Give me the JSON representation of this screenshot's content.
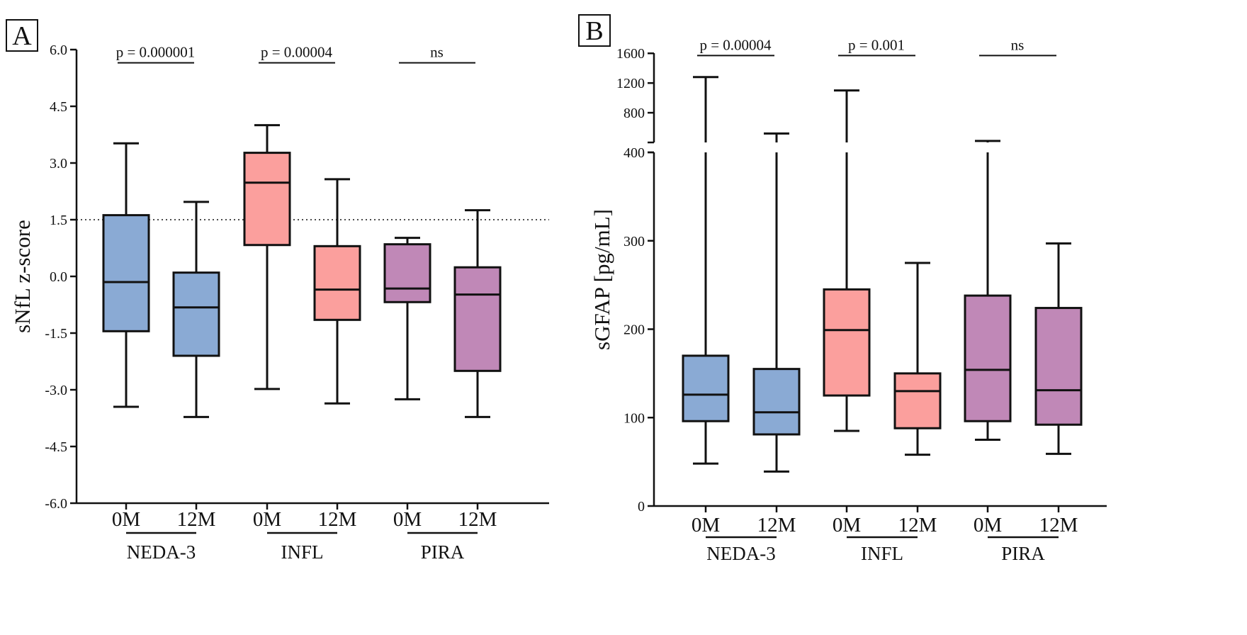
{
  "figure": {
    "panels_desc": "Two box-plot panels"
  },
  "colors": {
    "neda3": "#8aaad4",
    "infl": "#fb9f9d",
    "pira": "#c088b7",
    "stroke": "#111111"
  },
  "chart_data": [
    {
      "type": "box",
      "panel_label": "A",
      "ylabel": "sNfL z-score",
      "ylim": [
        -6.0,
        6.0
      ],
      "yticks": [
        6.0,
        4.5,
        3.0,
        1.5,
        0.0,
        -1.5,
        -3.0,
        -4.5,
        -6.0
      ],
      "ytick_labels": [
        "6.0",
        "4.5",
        "3.0",
        "1.5",
        "0.0",
        "-1.5",
        "-3.0",
        "-4.5",
        "-6.0"
      ],
      "reference_line": 1.5,
      "categories": [
        "0M",
        "12M",
        "0M",
        "12M",
        "0M",
        "12M"
      ],
      "groups": [
        {
          "name": "NEDA-3",
          "color_key": "neda3"
        },
        {
          "name": "INFL",
          "color_key": "infl"
        },
        {
          "name": "PIRA",
          "color_key": "pira"
        }
      ],
      "boxes": [
        {
          "group": 0,
          "timepoint": "0M",
          "min": -3.45,
          "q1": -1.45,
          "median": -0.15,
          "q3": 1.62,
          "max": 3.52
        },
        {
          "group": 0,
          "timepoint": "12M",
          "min": -3.72,
          "q1": -2.1,
          "median": -0.82,
          "q3": 0.1,
          "max": 1.97
        },
        {
          "group": 1,
          "timepoint": "0M",
          "min": -2.98,
          "q1": 0.83,
          "median": 2.48,
          "q3": 3.27,
          "max": 4.0
        },
        {
          "group": 1,
          "timepoint": "12M",
          "min": -3.36,
          "q1": -1.15,
          "median": -0.35,
          "q3": 0.8,
          "max": 2.57
        },
        {
          "group": 2,
          "timepoint": "0M",
          "min": -3.25,
          "q1": -0.68,
          "median": -0.32,
          "q3": 0.85,
          "max": 1.02
        },
        {
          "group": 2,
          "timepoint": "12M",
          "min": -3.72,
          "q1": -2.5,
          "median": -0.48,
          "q3": 0.24,
          "max": 1.75
        }
      ],
      "significance": [
        {
          "group": 0,
          "label": "p = 0.000001",
          "y": 5.65
        },
        {
          "group": 1,
          "label": "p = 0.00004",
          "y": 5.65
        },
        {
          "group": 2,
          "label": "ns",
          "y": 5.65
        }
      ]
    },
    {
      "type": "box",
      "panel_label": "B",
      "ylabel": "sGFAP [pg/mL]",
      "ylim": [
        0,
        1600
      ],
      "axis_break": [
        400,
        600
      ],
      "yticks": [
        1600,
        1200,
        800,
        400,
        300,
        200,
        100,
        0
      ],
      "ytick_labels": [
        "1600",
        "1200",
        "800",
        "400",
        "300",
        "200",
        "100",
        "0"
      ],
      "categories": [
        "0M",
        "12M",
        "0M",
        "12M",
        "0M",
        "12M"
      ],
      "groups": [
        {
          "name": "NEDA-3",
          "color_key": "neda3"
        },
        {
          "name": "INFL",
          "color_key": "infl"
        },
        {
          "name": "PIRA",
          "color_key": "pira"
        }
      ],
      "boxes": [
        {
          "group": 0,
          "timepoint": "0M",
          "min": 48,
          "q1": 96,
          "median": 126,
          "q3": 170,
          "max": 1280
        },
        {
          "group": 0,
          "timepoint": "12M",
          "min": 39,
          "q1": 81,
          "median": 106,
          "q3": 155,
          "max": 520
        },
        {
          "group": 1,
          "timepoint": "0M",
          "min": 85,
          "q1": 125,
          "median": 199,
          "q3": 245,
          "max": 1100
        },
        {
          "group": 1,
          "timepoint": "12M",
          "min": 58,
          "q1": 88,
          "median": 130,
          "q3": 150,
          "max": 275
        },
        {
          "group": 2,
          "timepoint": "0M",
          "min": 75,
          "q1": 96,
          "median": 154,
          "q3": 238,
          "max": 420
        },
        {
          "group": 2,
          "timepoint": "12M",
          "min": 59,
          "q1": 92,
          "median": 131,
          "q3": 224,
          "max": 297
        }
      ],
      "significance": [
        {
          "group": 0,
          "label": "p = 0.00004",
          "y": 1570
        },
        {
          "group": 1,
          "label": "p = 0.001",
          "y": 1570
        },
        {
          "group": 2,
          "label": "ns",
          "y": 1570
        }
      ]
    }
  ]
}
